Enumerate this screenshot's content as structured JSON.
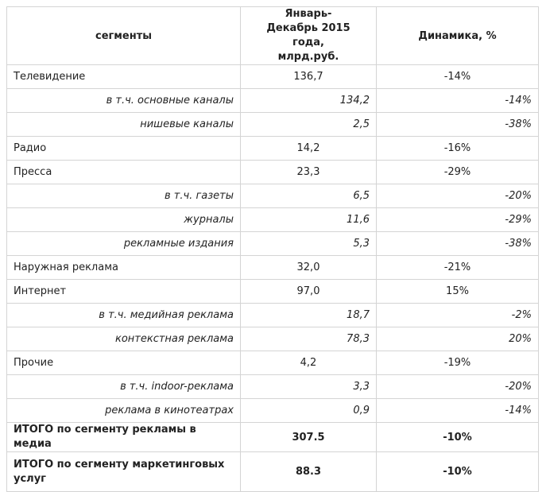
{
  "table": {
    "header": [
      "сегменты",
      "Январь-Декабрь 2015 года, млрд.руб.",
      "Динамика, %"
    ],
    "rows": [
      [
        "Телевидение",
        "136,7",
        "-14%"
      ],
      [
        "в т.ч. основные каналы",
        "134,2",
        "-14%"
      ],
      [
        "нишевые каналы",
        "2,5",
        "-38%"
      ],
      [
        "Радио",
        "14,2",
        "-16%"
      ],
      [
        "Пресса",
        "23,3",
        "-29%"
      ],
      [
        "в т.ч. газеты",
        "6,5",
        "-20%"
      ],
      [
        "журналы",
        "11,6",
        "-29%"
      ],
      [
        "рекламные издания",
        "5,3",
        "-38%"
      ],
      [
        "Наружная реклама",
        "32,0",
        "-21%"
      ],
      [
        "Интернет",
        "97,0",
        "15%"
      ],
      [
        "в т.ч. медийная реклама",
        "18,7",
        "-2%"
      ],
      [
        "контекстная реклама",
        "78,3",
        "20%"
      ],
      [
        "Прочие",
        "4,2",
        "-19%"
      ],
      [
        "в т.ч. indoor-реклама",
        "3,3",
        "-20%"
      ],
      [
        "реклама в кинотеатрах",
        "0,9",
        "-14%"
      ],
      [
        "ИТОГО по сегменту рекламы в медиа",
        "307.5",
        "-10%"
      ],
      [
        "ИТОГО по сегменту маркетинговых услуг",
        "88.3",
        "-10%"
      ]
    ]
  }
}
